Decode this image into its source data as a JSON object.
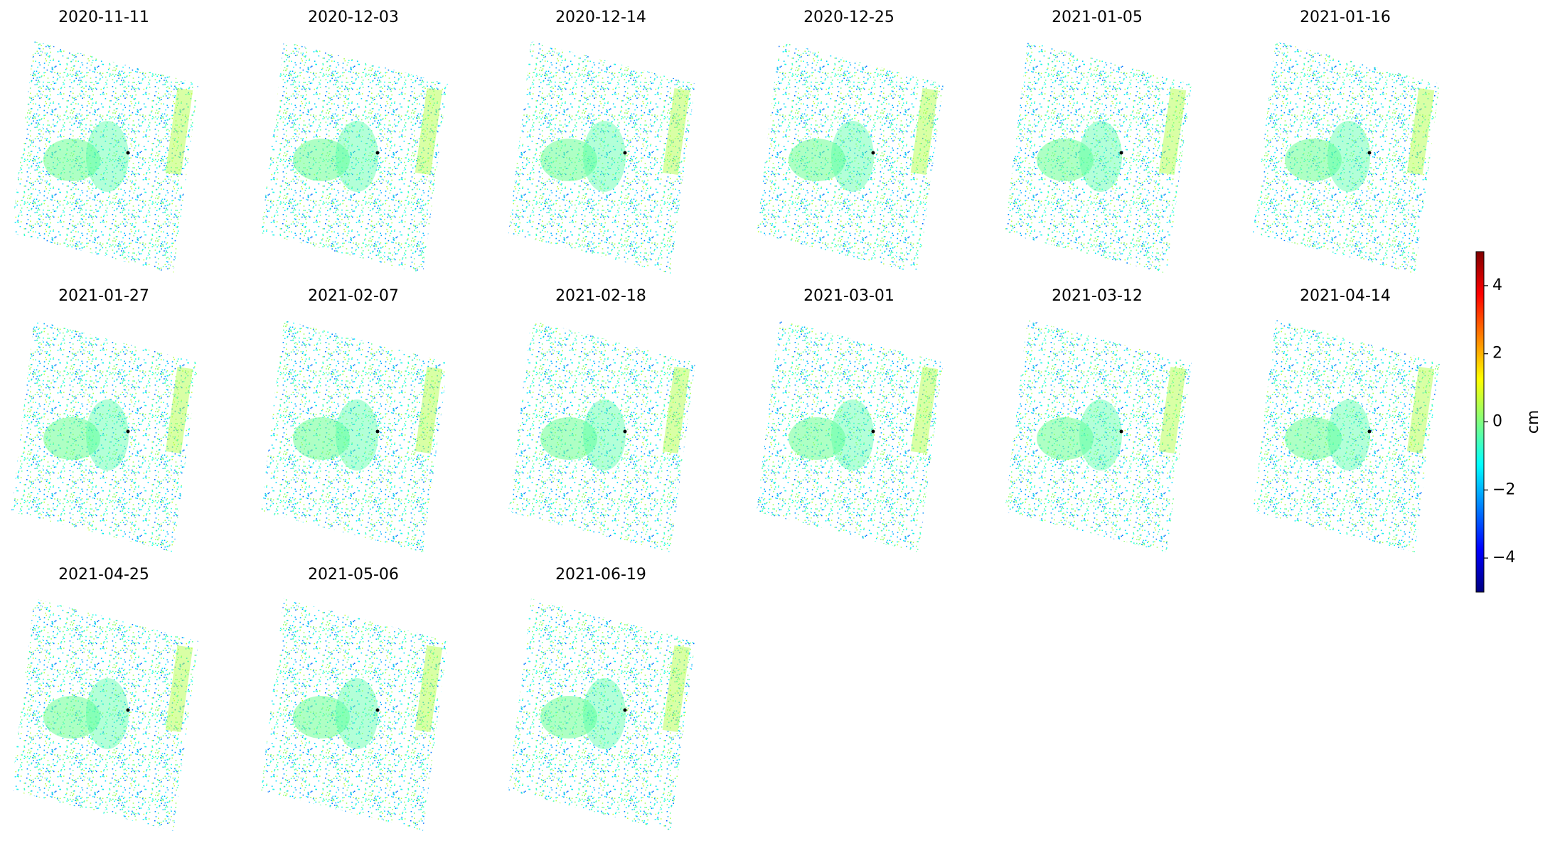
{
  "chart_data": {
    "type": "map-grid",
    "panels": [
      "2020-11-11",
      "2020-12-03",
      "2020-12-14",
      "2020-12-25",
      "2021-01-05",
      "2021-01-16",
      "2021-01-27",
      "2021-02-07",
      "2021-02-18",
      "2021-03-01",
      "2021-03-12",
      "2021-04-14",
      "2021-04-25",
      "2021-05-06",
      "2021-06-19"
    ],
    "colorbar": {
      "label": "cm",
      "colormap": "jet",
      "lim": [
        -5,
        5
      ],
      "ticks": [
        {
          "value": -4,
          "label": "−4"
        },
        {
          "value": -2,
          "label": "−2"
        },
        0,
        2,
        4
      ]
    }
  }
}
